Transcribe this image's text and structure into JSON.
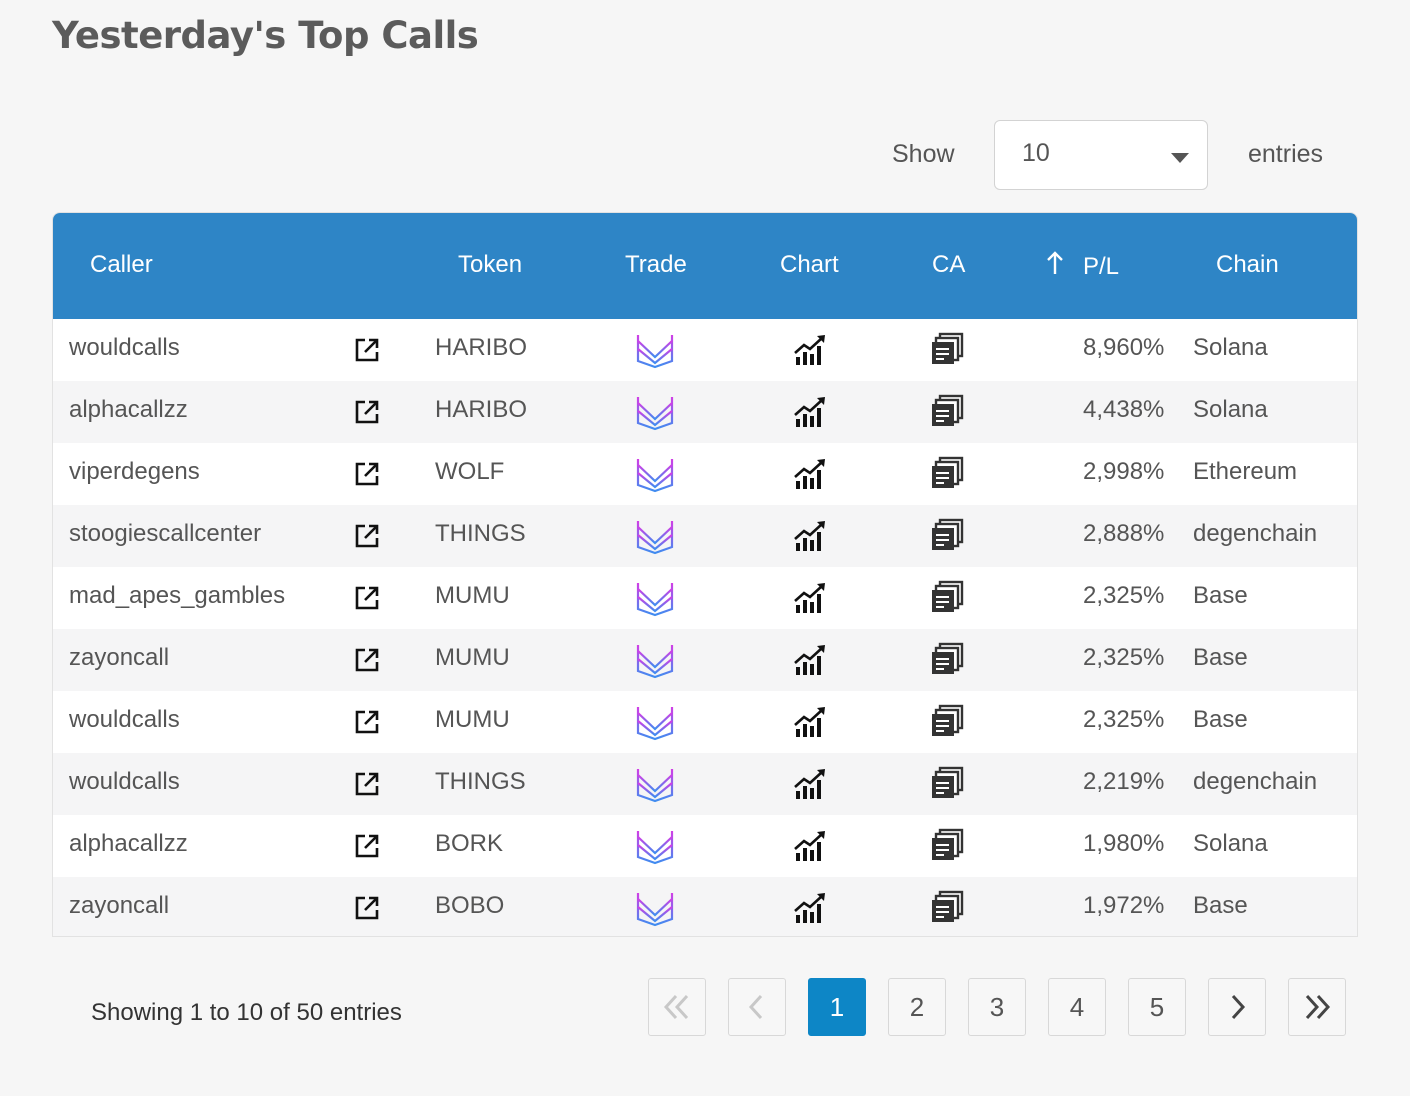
{
  "page": {
    "title": "Yesterday's Top Calls"
  },
  "length_control": {
    "show_label": "Show",
    "selected": "10",
    "entries_label": "entries"
  },
  "table": {
    "headers": {
      "caller": "Caller",
      "token": "Token",
      "trade": "Trade",
      "chart": "Chart",
      "ca": "CA",
      "pl": "P/L",
      "chain": "Chain"
    },
    "sort": {
      "column": "P/L",
      "direction": "descending",
      "icon": "arrow-up-icon"
    },
    "icons": {
      "caller_link": "external-link-icon",
      "trade": "trade-logo-icon",
      "chart": "chart-trend-icon",
      "ca": "copy-icon"
    },
    "rows": [
      {
        "caller": "wouldcalls",
        "token": "HARIBO",
        "pl": "8,960%",
        "chain": "Solana"
      },
      {
        "caller": "alphacallzz",
        "token": "HARIBO",
        "pl": "4,438%",
        "chain": "Solana"
      },
      {
        "caller": "viperdegens",
        "token": "WOLF",
        "pl": "2,998%",
        "chain": "Ethereum"
      },
      {
        "caller": "stoogiescallcenter",
        "token": "THINGS",
        "pl": "2,888%",
        "chain": "degenchain"
      },
      {
        "caller": "mad_apes_gambles",
        "token": "MUMU",
        "pl": "2,325%",
        "chain": "Base"
      },
      {
        "caller": "zayoncall",
        "token": "MUMU",
        "pl": "2,325%",
        "chain": "Base"
      },
      {
        "caller": "wouldcalls",
        "token": "MUMU",
        "pl": "2,325%",
        "chain": "Base"
      },
      {
        "caller": "wouldcalls",
        "token": "THINGS",
        "pl": "2,219%",
        "chain": "degenchain"
      },
      {
        "caller": "alphacallzz",
        "token": "BORK",
        "pl": "1,980%",
        "chain": "Solana"
      },
      {
        "caller": "zayoncall",
        "token": "BOBO",
        "pl": "1,972%",
        "chain": "Base"
      }
    ]
  },
  "info": {
    "text": "Showing 1 to 10 of 50 entries"
  },
  "pagination": {
    "first_icon": "double-chevron-left-icon",
    "prev_icon": "chevron-left-icon",
    "pages": [
      "1",
      "2",
      "3",
      "4",
      "5"
    ],
    "current": "1",
    "next_icon": "chevron-right-icon",
    "last_icon": "double-chevron-right-icon"
  },
  "colors": {
    "header_bg": "#2e85c6",
    "active_page": "#0d86c6",
    "trade_icon_gradient": [
      "#d23ee6",
      "#3f8cf0"
    ]
  }
}
